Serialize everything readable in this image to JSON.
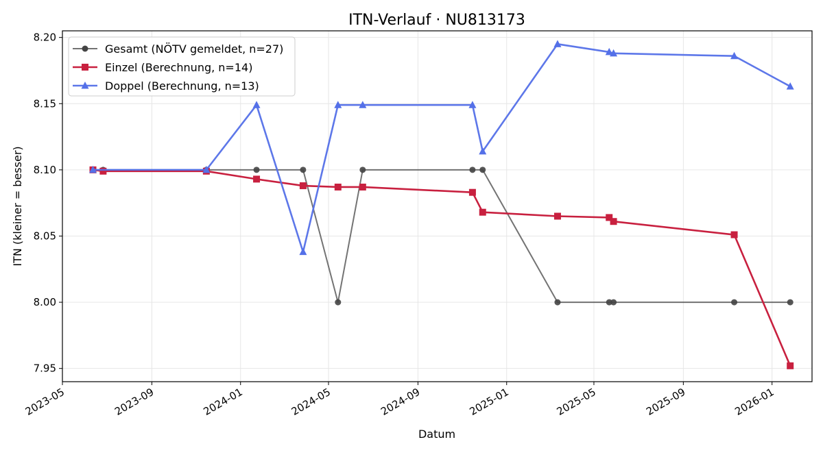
{
  "chart_data": {
    "type": "line",
    "title": "ITN-Verlauf · NU813173",
    "xlabel": "Datum",
    "ylabel": "ITN  (kleiner = besser)",
    "x_type": "date",
    "xlim": [
      "2023-05-01",
      "2026-02-25"
    ],
    "ylim": [
      7.94,
      8.205
    ],
    "x_ticks": [
      "2023-05-01",
      "2023-09-01",
      "2024-01-01",
      "2024-05-01",
      "2024-09-01",
      "2025-01-01",
      "2025-05-01",
      "2025-09-01",
      "2026-01-01"
    ],
    "x_tick_labels": [
      "2023-05",
      "2023-09",
      "2024-01",
      "2024-05",
      "2024-09",
      "2025-01",
      "2025-05",
      "2025-09",
      "2026-01"
    ],
    "y_ticks": [
      7.95,
      8.0,
      8.05,
      8.1,
      8.15,
      8.2
    ],
    "y_tick_labels": [
      "7.95",
      "8.00",
      "8.05",
      "8.10",
      "8.15",
      "8.20"
    ],
    "grid": true,
    "legend_position": "top-left",
    "series": [
      {
        "name": "Gesamt (NÖTV gemeldet, n=27)",
        "color": "#444444",
        "marker": "circle",
        "points": [
          {
            "x": "2023-06-12",
            "y": 8.1
          },
          {
            "x": "2023-06-26",
            "y": 8.1
          },
          {
            "x": "2023-11-15",
            "y": 8.1
          },
          {
            "x": "2024-01-23",
            "y": 8.1
          },
          {
            "x": "2024-03-27",
            "y": 8.1
          },
          {
            "x": "2024-05-14",
            "y": 8.0
          },
          {
            "x": "2024-06-17",
            "y": 8.1
          },
          {
            "x": "2024-11-15",
            "y": 8.1
          },
          {
            "x": "2024-11-29",
            "y": 8.1
          },
          {
            "x": "2025-03-12",
            "y": 8.0
          },
          {
            "x": "2025-05-22",
            "y": 8.0
          },
          {
            "x": "2025-05-28",
            "y": 8.0
          },
          {
            "x": "2025-11-10",
            "y": 8.0
          },
          {
            "x": "2026-01-26",
            "y": 8.0
          }
        ]
      },
      {
        "name": "Einzel (Berechnung, n=14)",
        "color": "#c8203f",
        "marker": "square",
        "points": [
          {
            "x": "2023-06-12",
            "y": 8.1
          },
          {
            "x": "2023-06-26",
            "y": 8.099
          },
          {
            "x": "2023-11-15",
            "y": 8.099
          },
          {
            "x": "2024-01-23",
            "y": 8.093
          },
          {
            "x": "2024-03-27",
            "y": 8.088
          },
          {
            "x": "2024-05-14",
            "y": 8.087
          },
          {
            "x": "2024-06-17",
            "y": 8.087
          },
          {
            "x": "2024-11-15",
            "y": 8.083
          },
          {
            "x": "2024-11-29",
            "y": 8.068
          },
          {
            "x": "2025-03-12",
            "y": 8.065
          },
          {
            "x": "2025-05-22",
            "y": 8.064
          },
          {
            "x": "2025-05-28",
            "y": 8.061
          },
          {
            "x": "2025-11-10",
            "y": 8.051
          },
          {
            "x": "2026-01-26",
            "y": 7.952
          }
        ]
      },
      {
        "name": "Doppel (Berechnung, n=13)",
        "color": "#5470e8",
        "marker": "triangle",
        "points": [
          {
            "x": "2023-06-12",
            "y": 8.1
          },
          {
            "x": "2023-11-15",
            "y": 8.1
          },
          {
            "x": "2024-01-23",
            "y": 8.149
          },
          {
            "x": "2024-03-27",
            "y": 8.038
          },
          {
            "x": "2024-05-14",
            "y": 8.149
          },
          {
            "x": "2024-06-17",
            "y": 8.149
          },
          {
            "x": "2024-11-15",
            "y": 8.149
          },
          {
            "x": "2024-11-29",
            "y": 8.114
          },
          {
            "x": "2025-03-12",
            "y": 8.195
          },
          {
            "x": "2025-05-22",
            "y": 8.189
          },
          {
            "x": "2025-05-28",
            "y": 8.188
          },
          {
            "x": "2025-11-10",
            "y": 8.186
          },
          {
            "x": "2026-01-26",
            "y": 8.163
          }
        ]
      }
    ]
  }
}
